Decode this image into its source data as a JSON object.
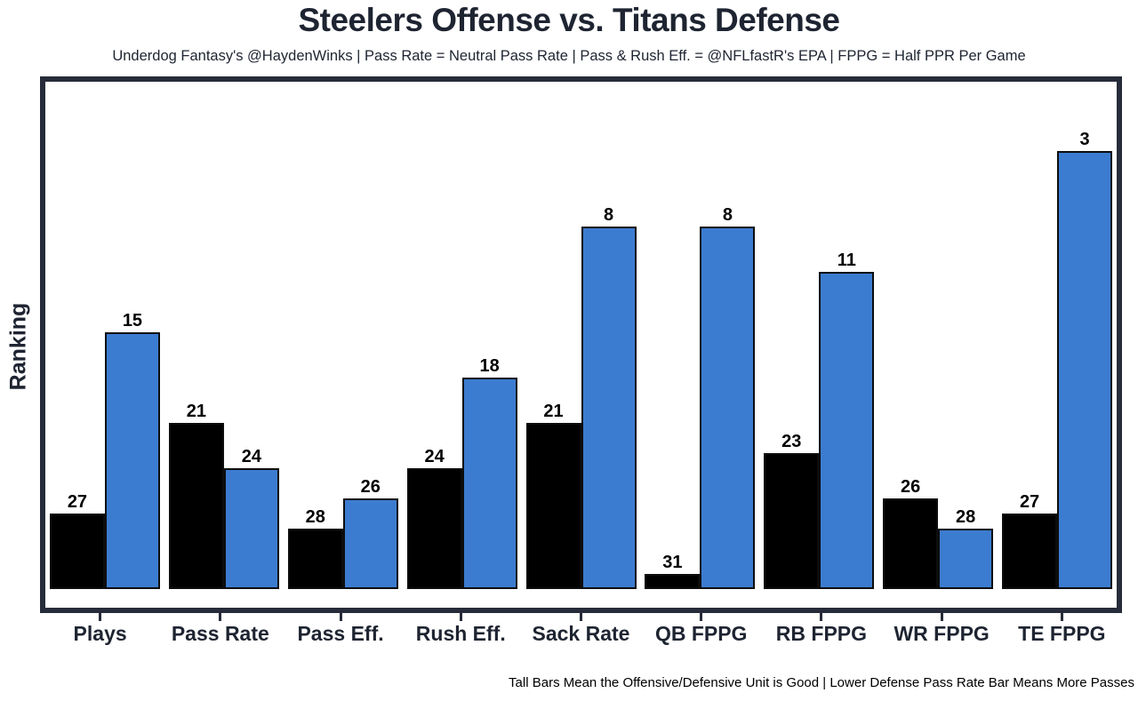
{
  "chart_data": {
    "type": "bar",
    "title": "Steelers Offense vs. Titans Defense",
    "subtitle": "Underdog Fantasy's @HaydenWinks | Pass Rate = Neutral Pass Rate | Pass & Rush Eff. = @NFLfastR's EPA | FPPG = Half PPR Per Game",
    "ylabel": "Ranking",
    "footnote": "Tall Bars Mean the Offensive/Defensive Unit is Good | Lower Defense Pass Rate Bar Means More Passes",
    "categories": [
      "Plays",
      "Pass Rate",
      "Pass Eff.",
      "Rush Eff.",
      "Sack Rate",
      "QB FPPG",
      "RB FPPG",
      "WR FPPG",
      "TE FPPG"
    ],
    "series": [
      {
        "name": "Steelers Offense",
        "key": "offense",
        "color": "#000000",
        "ranks": [
          27,
          21,
          28,
          24,
          21,
          31,
          23,
          26,
          27
        ]
      },
      {
        "name": "Titans Defense",
        "key": "defense",
        "color": "#3c7cd0",
        "ranks": [
          15,
          24,
          26,
          18,
          8,
          8,
          11,
          28,
          3
        ]
      }
    ],
    "rank_scale": {
      "best": 1,
      "worst": 32,
      "height_rule": "bar height proportional to (32 - rank); lower rank number = taller bar"
    },
    "grid": false,
    "legend": "none",
    "value_labels": "above bars"
  },
  "colors": {
    "frame": "#272c3a",
    "text_dark": "#1e2431",
    "bar_black": "#000000",
    "bar_blue": "#3c7cd0",
    "bar_border": "#0d0d0d",
    "background": "#ffffff"
  }
}
